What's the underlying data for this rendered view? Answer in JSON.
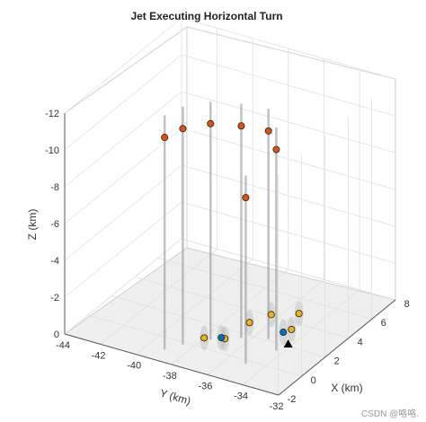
{
  "chart_data": {
    "type": "scatter3d",
    "title": "Jet Executing Horizontal Turn",
    "xlabel": "X (km)",
    "ylabel": "Y (km)",
    "zlabel": "Z (km)",
    "xlim": [
      -2,
      8
    ],
    "ylim": [
      -44,
      -32
    ],
    "zlim": [
      -12,
      0
    ],
    "z_axis_reversed": true,
    "grid": true,
    "xticks": [
      "-2",
      "0",
      "2",
      "4",
      "6",
      "8"
    ],
    "yticks": [
      "-44",
      "-42",
      "-40",
      "-38",
      "-36",
      "-34",
      "-32"
    ],
    "zticks": [
      "0",
      "-2",
      "-4",
      "-6",
      "-8",
      "-10",
      "-12"
    ],
    "series": [
      {
        "marker": "circle",
        "color": "#d95319",
        "points": [
          {
            "x": 3.2,
            "y": -41.8,
            "z": -8.6
          },
          {
            "x": 4.0,
            "y": -41.3,
            "z": -8.8
          },
          {
            "x": 5.0,
            "y": -40.4,
            "z": -8.8
          },
          {
            "x": 5.8,
            "y": -39.2,
            "z": -8.6
          },
          {
            "x": 6.3,
            "y": -38.0,
            "z": -8.4
          },
          {
            "x": 5.6,
            "y": -37.1,
            "z": -8.0
          },
          {
            "x": 3.9,
            "y": -37.7,
            "z": -6.1
          }
        ]
      },
      {
        "marker": "circle",
        "color": "#edb120",
        "points": [
          {
            "x": 0.8,
            "y": -38.0,
            "z": 0
          },
          {
            "x": 1.2,
            "y": -37.1,
            "z": 0
          },
          {
            "x": 3.0,
            "y": -36.9,
            "z": 0
          },
          {
            "x": 4.1,
            "y": -36.4,
            "z": 0
          },
          {
            "x": 4.8,
            "y": -35.3,
            "z": 0
          },
          {
            "x": 3.4,
            "y": -34.8,
            "z": 0
          }
        ]
      },
      {
        "marker": "circle",
        "color": "#0072bd",
        "points": [
          {
            "x": 1.2,
            "y": -37.3,
            "z": 0
          },
          {
            "x": 3.0,
            "y": -35.0,
            "z": 0
          }
        ]
      },
      {
        "marker": "triangle",
        "color": "#000000",
        "points": [
          {
            "x": 2.2,
            "y": -34.2,
            "z": 0
          }
        ]
      }
    ]
  },
  "watermark": "CSDN @咯咯."
}
